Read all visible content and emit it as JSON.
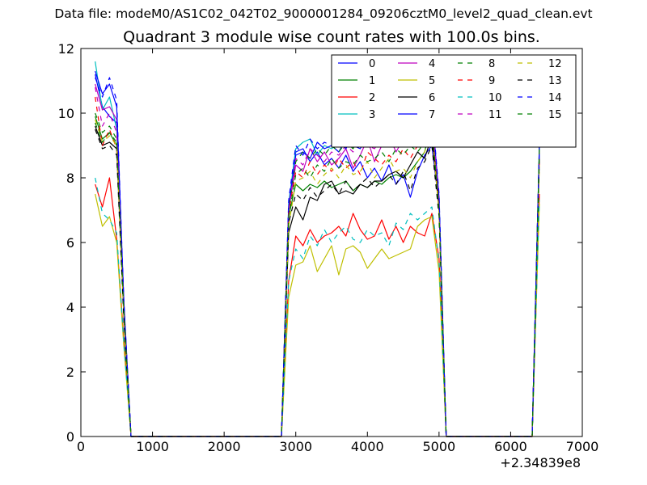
{
  "supertitle": "Data file: modeM0/AS1C02_042T02_9000001284_09206cztM0_level2_quad_clean.evt",
  "chart_data": {
    "type": "line",
    "title": "Quadrant 3 module wise count rates with 100.0s bins.",
    "xlabel": "",
    "ylabel": "",
    "x_offset_label": "+2.34839e8",
    "xlim": [
      0,
      7000
    ],
    "ylim": [
      0,
      12
    ],
    "x_ticks": [
      "0",
      "1000",
      "2000",
      "3000",
      "4000",
      "5000",
      "6000",
      "7000"
    ],
    "y_ticks": [
      "0",
      "2",
      "4",
      "6",
      "8",
      "10",
      "12"
    ],
    "grid": false,
    "legend_position": "top-right",
    "x": [
      200,
      300,
      400,
      500,
      600,
      700,
      800,
      900,
      1000,
      1100,
      1200,
      1300,
      1400,
      1500,
      1600,
      1700,
      1800,
      1900,
      2000,
      2100,
      2200,
      2300,
      2400,
      2500,
      2600,
      2700,
      2800,
      2900,
      3000,
      3100,
      3200,
      3300,
      3400,
      3500,
      3600,
      3700,
      3800,
      3900,
      4000,
      4100,
      4200,
      4300,
      4400,
      4500,
      4600,
      4700,
      4800,
      4900,
      5000,
      5100,
      5200,
      5300,
      5400,
      5500,
      5600,
      5700,
      5800,
      5900,
      6000,
      6100,
      6200,
      6300,
      6400
    ],
    "series": [
      {
        "name": "0",
        "color": "#0000ff",
        "style": "solid",
        "values": [
          11.2,
          10.2,
          9.9,
          9.7,
          4.0,
          0,
          0,
          0,
          0,
          0,
          0,
          0,
          0,
          0,
          0,
          0,
          0,
          0,
          0,
          0,
          0,
          0,
          0,
          0,
          0,
          0,
          0,
          7.0,
          8.8,
          8.9,
          8.5,
          8.8,
          8.4,
          8.6,
          8.3,
          8.7,
          8.2,
          8.5,
          8.0,
          8.3,
          7.9,
          8.4,
          7.8,
          8.1,
          7.4,
          8.2,
          8.7,
          9.0,
          7.2,
          0,
          0,
          0,
          0,
          0,
          0,
          0,
          0,
          0,
          0,
          0,
          0,
          0,
          8.8
        ]
      },
      {
        "name": "1",
        "color": "#008000",
        "style": "solid",
        "values": [
          9.9,
          9.2,
          9.4,
          9.0,
          3.8,
          0,
          0,
          0,
          0,
          0,
          0,
          0,
          0,
          0,
          0,
          0,
          0,
          0,
          0,
          0,
          0,
          0,
          0,
          0,
          0,
          0,
          0,
          6.8,
          7.8,
          7.6,
          7.8,
          7.7,
          7.9,
          7.7,
          7.8,
          7.9,
          7.6,
          7.8,
          7.7,
          7.9,
          7.8,
          8.0,
          8.1,
          8.0,
          8.2,
          8.5,
          8.8,
          9.8,
          7.0,
          0,
          0,
          0,
          0,
          0,
          0,
          0,
          0,
          0,
          0,
          0,
          0,
          0,
          8.9
        ]
      },
      {
        "name": "2",
        "color": "#ff0000",
        "style": "solid",
        "values": [
          7.8,
          7.1,
          8.0,
          6.1,
          3.0,
          0,
          0,
          0,
          0,
          0,
          0,
          0,
          0,
          0,
          0,
          0,
          0,
          0,
          0,
          0,
          0,
          0,
          0,
          0,
          0,
          0,
          0,
          4.8,
          6.2,
          5.9,
          6.4,
          6.0,
          6.2,
          6.3,
          6.5,
          6.2,
          6.9,
          6.4,
          6.1,
          6.2,
          6.7,
          6.1,
          6.5,
          6.0,
          6.5,
          6.3,
          6.2,
          6.9,
          5.5,
          0,
          0,
          0,
          0,
          0,
          0,
          0,
          0,
          0,
          0,
          0,
          0,
          0,
          7.5
        ]
      },
      {
        "name": "3",
        "color": "#00bfbf",
        "style": "solid",
        "values": [
          11.6,
          10.1,
          10.5,
          9.5,
          4.1,
          0,
          0,
          0,
          0,
          0,
          0,
          0,
          0,
          0,
          0,
          0,
          0,
          0,
          0,
          0,
          0,
          0,
          0,
          0,
          0,
          0,
          0,
          7.2,
          8.9,
          9.1,
          9.2,
          8.7,
          9.0,
          8.9,
          9.1,
          9.3,
          9.5,
          9.2,
          9.6,
          9.1,
          9.4,
          9.8,
          9.3,
          9.6,
          9.2,
          9.7,
          9.4,
          10.0,
          7.3,
          0,
          0,
          0,
          0,
          0,
          0,
          0,
          0,
          0,
          0,
          0,
          0,
          0,
          8.7
        ]
      },
      {
        "name": "4",
        "color": "#bf00bf",
        "style": "solid",
        "values": [
          10.9,
          10.1,
          10.2,
          9.8,
          4.1,
          0,
          0,
          0,
          0,
          0,
          0,
          0,
          0,
          0,
          0,
          0,
          0,
          0,
          0,
          0,
          0,
          0,
          0,
          0,
          0,
          0,
          0,
          7.0,
          8.4,
          8.2,
          8.9,
          8.5,
          8.8,
          8.4,
          8.6,
          8.9,
          8.3,
          8.7,
          9.2,
          8.5,
          9.0,
          9.3,
          8.8,
          9.2,
          9.6,
          9.4,
          9.9,
          10.0,
          7.1,
          0,
          0,
          0,
          0,
          0,
          0,
          0,
          0,
          0,
          0,
          0,
          0,
          0,
          8.8
        ]
      },
      {
        "name": "5",
        "color": "#bfbf00",
        "style": "solid",
        "values": [
          7.5,
          6.5,
          6.8,
          6.0,
          2.8,
          0,
          0,
          0,
          0,
          0,
          0,
          0,
          0,
          0,
          0,
          0,
          0,
          0,
          0,
          0,
          0,
          0,
          0,
          0,
          0,
          0,
          0,
          4.3,
          5.3,
          5.4,
          5.9,
          5.1,
          5.5,
          5.9,
          5.0,
          5.8,
          5.9,
          5.7,
          5.2,
          5.5,
          5.8,
          5.5,
          5.6,
          5.7,
          5.8,
          6.5,
          6.7,
          6.8,
          5.1,
          0,
          0,
          0,
          0,
          0,
          0,
          0,
          0,
          0,
          0,
          0,
          0,
          0,
          7.2
        ]
      },
      {
        "name": "6",
        "color": "#000000",
        "style": "solid",
        "values": [
          9.6,
          9.0,
          9.1,
          8.9,
          3.7,
          0,
          0,
          0,
          0,
          0,
          0,
          0,
          0,
          0,
          0,
          0,
          0,
          0,
          0,
          0,
          0,
          0,
          0,
          0,
          0,
          0,
          0,
          6.3,
          7.1,
          6.7,
          7.4,
          7.3,
          7.8,
          7.9,
          7.5,
          7.6,
          7.5,
          7.8,
          7.7,
          7.9,
          7.9,
          8.1,
          8.2,
          8.0,
          8.4,
          8.8,
          8.6,
          9.3,
          7.0,
          0,
          0,
          0,
          0,
          0,
          0,
          0,
          0,
          0,
          0,
          0,
          0,
          0,
          8.6
        ]
      },
      {
        "name": "7",
        "color": "#0000ff",
        "style": "solid",
        "values": [
          11.3,
          10.6,
          10.9,
          10.2,
          4.2,
          0,
          0,
          0,
          0,
          0,
          0,
          0,
          0,
          0,
          0,
          0,
          0,
          0,
          0,
          0,
          0,
          0,
          0,
          0,
          0,
          0,
          0,
          7.1,
          8.7,
          8.8,
          8.6,
          9.1,
          8.9,
          9.0,
          8.8,
          9.2,
          9.0,
          8.9,
          9.3,
          9.2,
          9.4,
          9.1,
          9.6,
          9.5,
          9.3,
          9.6,
          9.5,
          10.1,
          7.4,
          0,
          0,
          0,
          0,
          0,
          0,
          0,
          0,
          0,
          0,
          0,
          0,
          0,
          8.9
        ]
      },
      {
        "name": "8",
        "color": "#008000",
        "style": "dashed",
        "values": [
          10.0,
          9.4,
          9.6,
          9.2,
          3.9,
          0,
          0,
          0,
          0,
          0,
          0,
          0,
          0,
          0,
          0,
          0,
          0,
          0,
          0,
          0,
          0,
          0,
          0,
          0,
          0,
          0,
          0,
          7.0,
          8.5,
          8.8,
          8.6,
          8.9,
          8.7,
          9.0,
          8.8,
          9.1,
          8.9,
          9.3,
          9.0,
          9.2,
          9.1,
          9.4,
          9.3,
          9.5,
          9.7,
          9.6,
          10.6,
          10.2,
          7.3,
          0,
          0,
          0,
          0,
          0,
          0,
          0,
          0,
          0,
          0,
          0,
          0,
          0,
          9.0
        ]
      },
      {
        "name": "9",
        "color": "#ff0000",
        "style": "dashed",
        "values": [
          10.5,
          9.0,
          9.5,
          8.9,
          3.9,
          0,
          0,
          0,
          0,
          0,
          0,
          0,
          0,
          0,
          0,
          0,
          0,
          0,
          0,
          0,
          0,
          0,
          0,
          0,
          0,
          0,
          0,
          6.9,
          8.2,
          8.0,
          8.5,
          8.1,
          8.4,
          8.2,
          8.6,
          8.3,
          8.5,
          8.1,
          8.8,
          8.6,
          8.4,
          8.7,
          8.5,
          8.9,
          8.6,
          9.0,
          9.2,
          9.5,
          7.0,
          0,
          0,
          0,
          0,
          0,
          0,
          0,
          0,
          0,
          0,
          0,
          0,
          0,
          8.5
        ]
      },
      {
        "name": "10",
        "color": "#00bfbf",
        "style": "dashed",
        "values": [
          8.0,
          6.9,
          6.7,
          6.3,
          2.9,
          0,
          0,
          0,
          0,
          0,
          0,
          0,
          0,
          0,
          0,
          0,
          0,
          0,
          0,
          0,
          0,
          0,
          0,
          0,
          0,
          0,
          0,
          4.8,
          5.8,
          5.5,
          6.2,
          5.9,
          6.4,
          6.0,
          6.3,
          6.5,
          6.1,
          6.0,
          6.4,
          6.2,
          6.3,
          5.9,
          6.6,
          6.4,
          6.9,
          6.7,
          6.9,
          7.1,
          5.4,
          0,
          0,
          0,
          0,
          0,
          0,
          0,
          0,
          0,
          0,
          0,
          0,
          0,
          7.3
        ]
      },
      {
        "name": "11",
        "color": "#bf00bf",
        "style": "dashed",
        "values": [
          10.8,
          9.6,
          10.0,
          9.4,
          4.0,
          0,
          0,
          0,
          0,
          0,
          0,
          0,
          0,
          0,
          0,
          0,
          0,
          0,
          0,
          0,
          0,
          0,
          0,
          0,
          0,
          0,
          0,
          7.0,
          8.6,
          8.4,
          8.9,
          8.7,
          8.5,
          8.8,
          8.7,
          9.0,
          8.8,
          9.1,
          9.0,
          8.9,
          9.3,
          9.0,
          9.4,
          9.2,
          9.5,
          9.3,
          9.6,
          10.0,
          7.2,
          0,
          0,
          0,
          0,
          0,
          0,
          0,
          0,
          0,
          0,
          0,
          0,
          0,
          8.8
        ]
      },
      {
        "name": "12",
        "color": "#bfbf00",
        "style": "dashed",
        "values": [
          9.8,
          9.1,
          9.3,
          9.0,
          3.8,
          0,
          0,
          0,
          0,
          0,
          0,
          0,
          0,
          0,
          0,
          0,
          0,
          0,
          0,
          0,
          0,
          0,
          0,
          0,
          0,
          0,
          0,
          6.5,
          7.9,
          8.0,
          8.2,
          7.8,
          8.1,
          8.3,
          8.0,
          8.4,
          8.1,
          8.2,
          8.5,
          8.0,
          8.3,
          8.6,
          8.2,
          8.3,
          8.0,
          8.5,
          8.8,
          9.5,
          6.9,
          0,
          0,
          0,
          0,
          0,
          0,
          0,
          0,
          0,
          0,
          0,
          0,
          0,
          8.4
        ]
      },
      {
        "name": "13",
        "color": "#000000",
        "style": "dashed",
        "values": [
          9.5,
          8.9,
          9.0,
          8.7,
          3.6,
          0,
          0,
          0,
          0,
          0,
          0,
          0,
          0,
          0,
          0,
          0,
          0,
          0,
          0,
          0,
          0,
          0,
          0,
          0,
          0,
          0,
          0,
          6.6,
          7.5,
          7.3,
          7.7,
          7.4,
          7.6,
          7.8,
          7.5,
          7.9,
          7.6,
          7.8,
          8.0,
          7.7,
          7.9,
          8.1,
          7.8,
          8.2,
          7.6,
          8.3,
          8.5,
          9.0,
          6.8,
          0,
          0,
          0,
          0,
          0,
          0,
          0,
          0,
          0,
          0,
          0,
          0,
          0,
          8.6
        ]
      },
      {
        "name": "14",
        "color": "#0000ff",
        "style": "dashed",
        "values": [
          11.1,
          10.5,
          11.1,
          10.4,
          4.2,
          0,
          0,
          0,
          0,
          0,
          0,
          0,
          0,
          0,
          0,
          0,
          0,
          0,
          0,
          0,
          0,
          0,
          0,
          0,
          0,
          0,
          0,
          7.3,
          9.0,
          8.7,
          9.2,
          8.9,
          9.1,
          9.0,
          9.2,
          8.9,
          9.3,
          9.1,
          9.4,
          9.2,
          9.5,
          9.3,
          9.6,
          9.4,
          9.7,
          9.5,
          9.8,
          10.2,
          7.5,
          0,
          0,
          0,
          0,
          0,
          0,
          0,
          0,
          0,
          0,
          0,
          0,
          0,
          9.0
        ]
      },
      {
        "name": "15",
        "color": "#008000",
        "style": "dashed",
        "values": [
          9.7,
          9.1,
          9.4,
          9.1,
          3.9,
          0,
          0,
          0,
          0,
          0,
          0,
          0,
          0,
          0,
          0,
          0,
          0,
          0,
          0,
          0,
          0,
          0,
          0,
          0,
          0,
          0,
          0,
          6.8,
          8.1,
          8.3,
          8.0,
          8.4,
          8.2,
          8.6,
          8.3,
          8.5,
          8.4,
          8.7,
          8.5,
          8.6,
          8.8,
          8.5,
          8.9,
          8.7,
          9.0,
          8.8,
          9.1,
          9.6,
          7.0,
          0,
          0,
          0,
          0,
          0,
          0,
          0,
          0,
          0,
          0,
          0,
          0,
          0,
          8.9
        ]
      }
    ]
  }
}
